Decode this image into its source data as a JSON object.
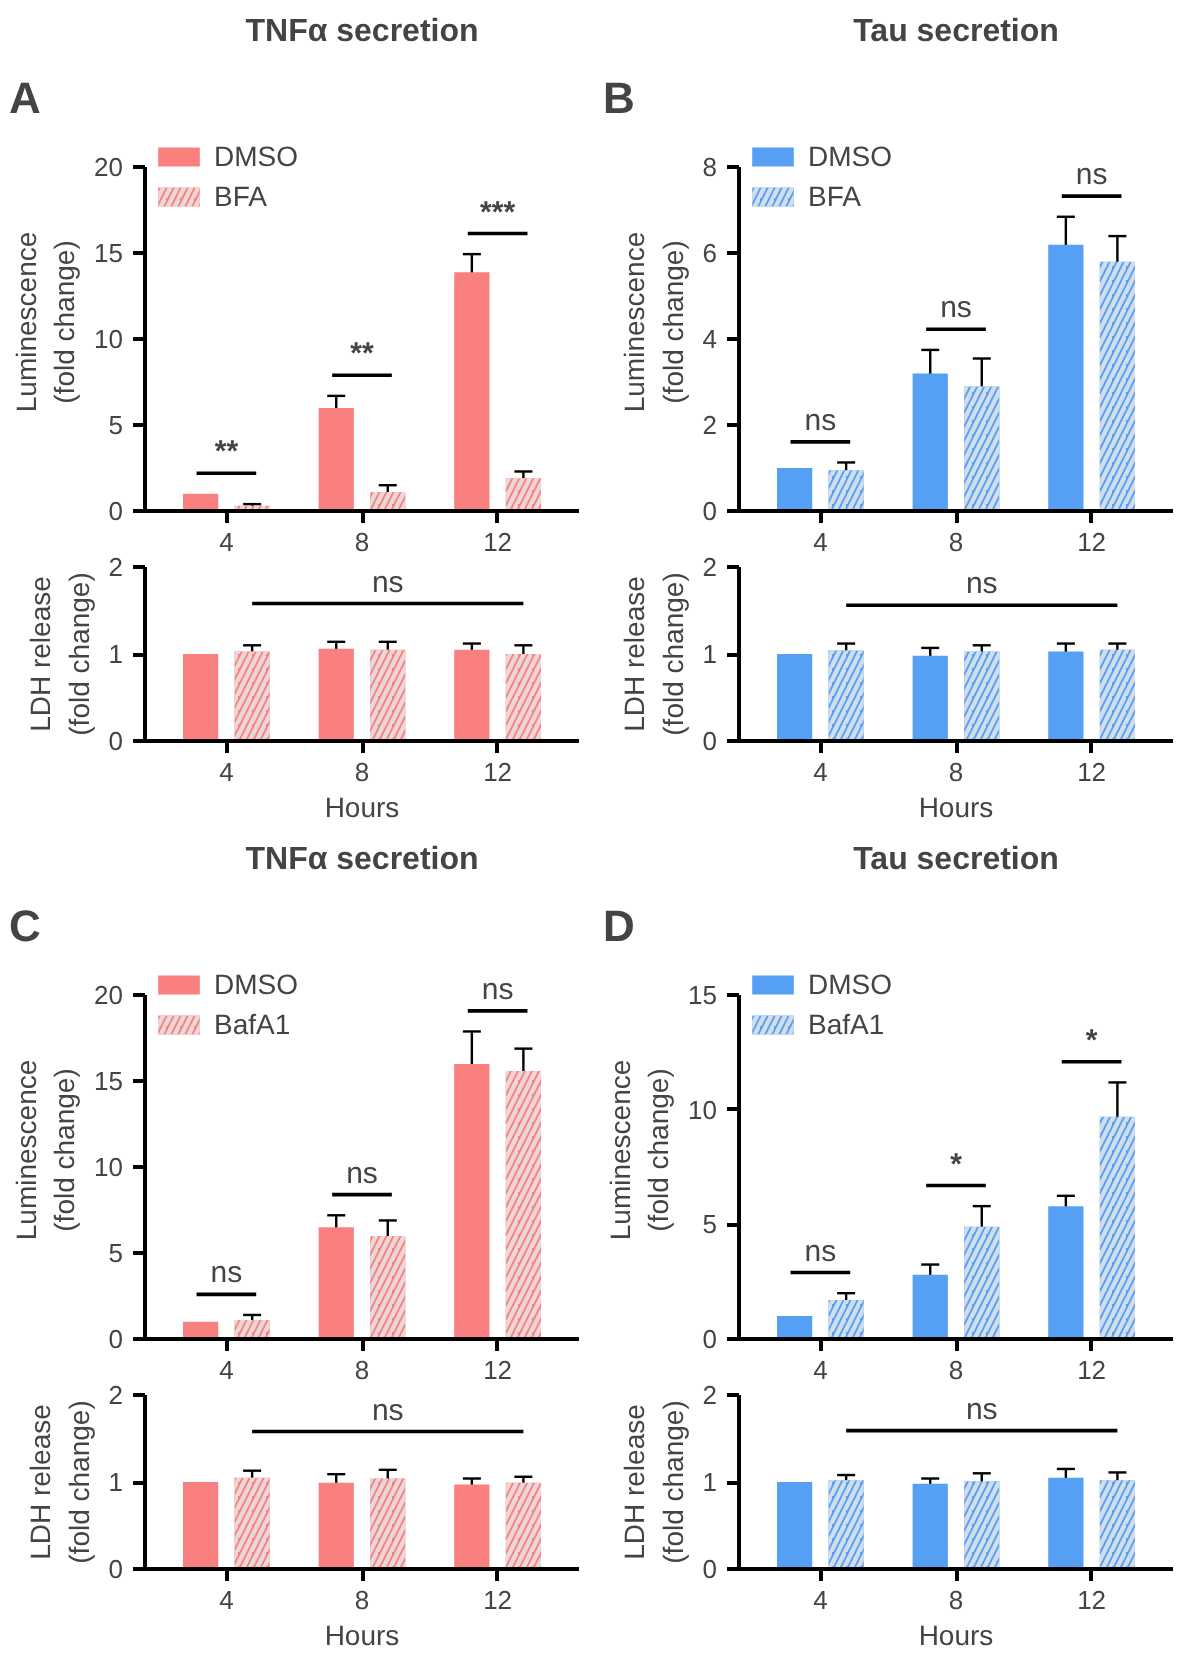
{
  "chart_data": [
    {
      "type": "bar",
      "title": "TNFα secretion",
      "ylabel": "Luminescence\n(fold change)",
      "categories": [
        "4",
        "8",
        "12"
      ],
      "ylim": [
        0,
        20
      ],
      "yticks": [
        0,
        5,
        10,
        15,
        20
      ],
      "grid": false,
      "legend": "top left",
      "series": [
        {
          "name": "DMSO",
          "color": "#fa8080",
          "values": [
            1,
            6.0,
            13.9
          ],
          "errors": [
            null,
            0.7,
            1.05
          ]
        },
        {
          "name": "BFA",
          "color": "#fa8080",
          "values": [
            0.3,
            1.1,
            1.9
          ],
          "errors": [
            0.1,
            0.4,
            0.4
          ]
        }
      ],
      "annotations": [
        "A",
        "**",
        "**",
        "***"
      ]
    },
    {
      "type": "bar",
      "title": "Tau secretion",
      "ylabel": "Luminescence\n(fold change)",
      "categories": [
        "4",
        "8",
        "12"
      ],
      "ylim": [
        0,
        8
      ],
      "yticks": [
        0,
        2,
        4,
        6,
        8
      ],
      "grid": false,
      "legend": "top left",
      "series": [
        {
          "name": "DMSO",
          "color": "#55a0f5",
          "values": [
            1,
            3.2,
            6.2
          ],
          "errors": [
            null,
            0.55,
            0.65
          ]
        },
        {
          "name": "BFA",
          "color": "#55a0f5",
          "values": [
            0.95,
            2.9,
            5.8
          ],
          "errors": [
            0.18,
            0.65,
            0.6
          ]
        }
      ],
      "annotations": [
        "B",
        "ns",
        "ns",
        "ns"
      ]
    },
    {
      "type": "bar",
      "xlabel": "Hours",
      "ylabel": "LDH release\n(fold change)",
      "categories": [
        "4",
        "8",
        "12"
      ],
      "ylim": [
        0,
        2
      ],
      "yticks": [
        0,
        1,
        2
      ],
      "grid": false,
      "series": [
        {
          "color": "#fa8080",
          "values": [
            1,
            1.06,
            1.05
          ],
          "errors": [
            null,
            0.08,
            0.07
          ]
        },
        {
          "color": "#fa8080",
          "values": [
            1.03,
            1.05,
            1.0
          ],
          "errors": [
            0.07,
            0.09,
            0.1
          ]
        }
      ],
      "annotations": [
        "ns"
      ]
    },
    {
      "type": "bar",
      "xlabel": "Hours",
      "ylabel": "LDH release\n(fold change)",
      "categories": [
        "4",
        "8",
        "12"
      ],
      "ylim": [
        0,
        2
      ],
      "yticks": [
        0,
        1,
        2
      ],
      "grid": false,
      "series": [
        {
          "color": "#55a0f5",
          "values": [
            1,
            0.98,
            1.03
          ],
          "errors": [
            null,
            0.09,
            0.09
          ]
        },
        {
          "color": "#55a0f5",
          "values": [
            1.04,
            1.03,
            1.05
          ],
          "errors": [
            0.08,
            0.07,
            0.07
          ]
        }
      ],
      "annotations": [
        "ns"
      ]
    },
    {
      "type": "bar",
      "title": "TNFα secretion",
      "ylabel": "Luminescence\n(fold change)",
      "categories": [
        "4",
        "8",
        "12"
      ],
      "ylim": [
        0,
        20
      ],
      "yticks": [
        0,
        5,
        10,
        15,
        20
      ],
      "grid": false,
      "legend": "top left",
      "series": [
        {
          "name": "DMSO",
          "color": "#fa8080",
          "values": [
            1,
            6.5,
            16
          ],
          "errors": [
            null,
            0.7,
            1.9
          ]
        },
        {
          "name": "BafA1",
          "color": "#fa8080",
          "values": [
            1.1,
            6.0,
            15.6
          ],
          "errors": [
            0.3,
            0.9,
            1.3
          ]
        }
      ],
      "annotations": [
        "C",
        "ns",
        "ns",
        "ns"
      ]
    },
    {
      "type": "bar",
      "title": "Tau secretion",
      "ylabel": "Luminescence\n(fold change)",
      "categories": [
        "4",
        "8",
        "12"
      ],
      "ylim": [
        0,
        15
      ],
      "yticks": [
        0,
        5,
        10,
        15
      ],
      "grid": false,
      "legend": "top left",
      "series": [
        {
          "name": "DMSO",
          "color": "#55a0f5",
          "values": [
            1,
            2.8,
            5.8
          ],
          "errors": [
            null,
            0.45,
            0.45
          ]
        },
        {
          "name": "BafA1",
          "color": "#55a0f5",
          "values": [
            1.7,
            4.9,
            9.7
          ],
          "errors": [
            0.3,
            0.9,
            1.5
          ]
        }
      ],
      "annotations": [
        "D",
        "ns",
        "*",
        "*"
      ]
    },
    {
      "type": "bar",
      "xlabel": "Hours",
      "ylabel": "LDH release\n(fold change)",
      "categories": [
        "4",
        "8",
        "12"
      ],
      "ylim": [
        0,
        2
      ],
      "yticks": [
        0,
        1,
        2
      ],
      "grid": false,
      "series": [
        {
          "color": "#fa8080",
          "values": [
            1,
            0.99,
            0.97
          ],
          "errors": [
            null,
            0.1,
            0.07
          ]
        },
        {
          "color": "#fa8080",
          "values": [
            1.05,
            1.04,
            0.99
          ],
          "errors": [
            0.08,
            0.1,
            0.07
          ]
        }
      ],
      "annotations": [
        "ns"
      ]
    },
    {
      "type": "bar",
      "xlabel": "Hours",
      "ylabel": "LDH release\n(fold change)",
      "categories": [
        "4",
        "8",
        "12"
      ],
      "ylim": [
        0,
        2
      ],
      "yticks": [
        0,
        1,
        2
      ],
      "grid": false,
      "series": [
        {
          "color": "#55a0f5",
          "values": [
            1,
            0.98,
            1.05
          ],
          "errors": [
            null,
            0.06,
            0.1
          ]
        },
        {
          "color": "#55a0f5",
          "values": [
            1.02,
            1.01,
            1.02
          ],
          "errors": [
            0.06,
            0.09,
            0.09
          ]
        }
      ],
      "annotations": [
        "ns"
      ]
    }
  ]
}
